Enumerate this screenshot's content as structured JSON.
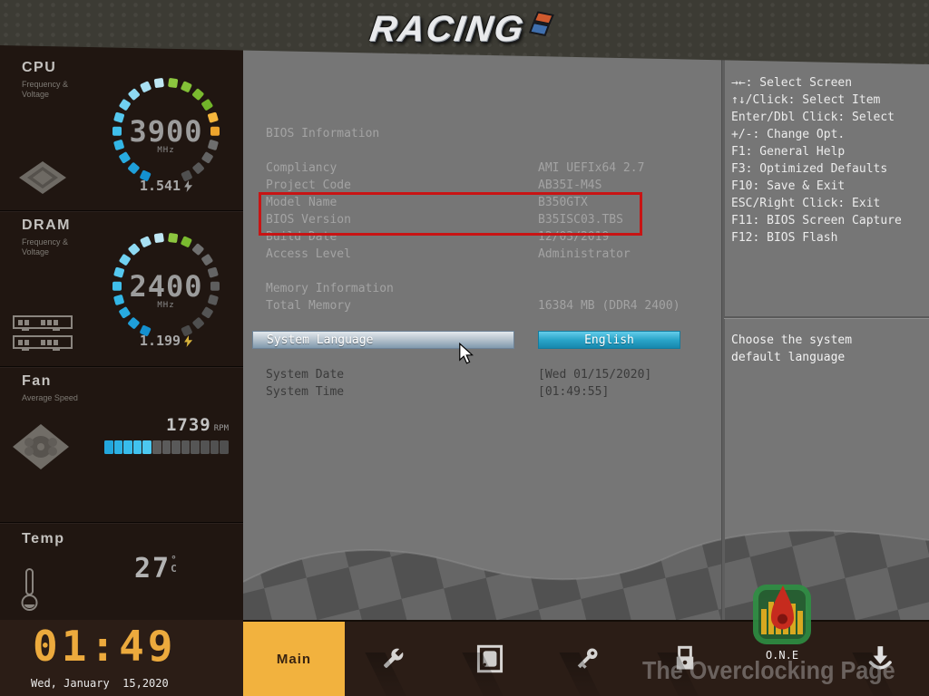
{
  "header": {
    "logo_text": "RACING"
  },
  "sidebar": {
    "cpu": {
      "title": "CPU",
      "subtitle": "Frequency & Voltage",
      "value": "3900",
      "unit": "MHz",
      "voltage": "1.541",
      "segments": [
        "#1490cf",
        "#1f9fd9",
        "#28abe0",
        "#33b6e6",
        "#40bfeb",
        "#55c8ef",
        "#70d1f1",
        "#8edaf3",
        "#a8e0f3",
        "#bfe7f4",
        "#8cc63f",
        "#83c037",
        "#7aba2f",
        "#71b52a",
        "#f5b63d",
        "#eda42c",
        "#6e6e6e",
        "#636363",
        "#585858",
        "#4f4f4f"
      ]
    },
    "dram": {
      "title": "DRAM",
      "subtitle": "Frequency & Voltage",
      "value": "2400",
      "unit": "MHz",
      "voltage": "1.199",
      "segments": [
        "#1490cf",
        "#1f9fd9",
        "#28abe0",
        "#33b6e6",
        "#40bfeb",
        "#55c8ef",
        "#70d1f1",
        "#8edaf3",
        "#a8e0f3",
        "#bfe7f4",
        "#8cc63f",
        "#7aba2f",
        "#707070",
        "#6a6a6a",
        "#646464",
        "#5e5e5e",
        "#595959",
        "#545454",
        "#4f4f4f",
        "#4a4a4a"
      ]
    },
    "fan": {
      "title": "Fan",
      "subtitle": "Average Speed",
      "value": "1739",
      "unit": "RPM",
      "segments": [
        "#23a7dd",
        "#2db2e5",
        "#38bcec",
        "#41c2ef",
        "#4cc8f1",
        "#5d5d5d",
        "#5b5b5b",
        "#595959",
        "#575757",
        "#555555",
        "#535353",
        "#515151",
        "#4f4f4f"
      ]
    },
    "temp": {
      "title": "Temp",
      "value": "27",
      "unit": "°C"
    },
    "clock": {
      "time": "01:49",
      "date": "Wed, January  15,2020"
    }
  },
  "main": {
    "bios_section_title": "BIOS Information",
    "bios_rows": [
      {
        "label": "Compliancy",
        "value": "AMI UEFIx64 2.7"
      },
      {
        "label": "Project Code",
        "value": "AB35I-M4S"
      },
      {
        "label": "Model Name",
        "value": "B350GTX",
        "highlighted": true
      },
      {
        "label": "BIOS Version",
        "value": "B35ISC03.TBS",
        "highlighted": true
      },
      {
        "label": "Build Date",
        "value": "12/03/2019"
      },
      {
        "label": "Access Level",
        "value": "Administrator"
      }
    ],
    "memory_section_title": "Memory Information",
    "memory_rows": [
      {
        "label": "Total Memory",
        "value": "16384 MB (DDR4 2400)"
      }
    ],
    "language_row": {
      "label": "System Language",
      "value": "English"
    },
    "datetime_rows": [
      {
        "label": "System Date",
        "value": "[Wed 01/15/2020]"
      },
      {
        "label": "System Time",
        "value": "[01:49:55]"
      }
    ]
  },
  "help_panel": {
    "lines": [
      "→←: Select Screen",
      "↑↓/Click: Select Item",
      "Enter/Dbl Click: Select",
      "+/-: Change Opt.",
      "F1: General Help",
      "F3: Optimized Defaults",
      "F10: Save & Exit",
      "ESC/Right Click: Exit",
      "F11: BIOS Screen Capture",
      "F12: BIOS Flash"
    ],
    "description": "Choose the system\ndefault language"
  },
  "bottom_nav": {
    "active_tab_label": "Main",
    "items": [
      {
        "icon": "wrench-icon"
      },
      {
        "icon": "chipset-icon"
      },
      {
        "icon": "key-icon"
      },
      {
        "icon": "lock-icon"
      },
      {
        "icon": "one-icon",
        "label": "O.N.E"
      },
      {
        "icon": "download-icon"
      }
    ]
  },
  "watermark": "The Overclocking Page",
  "colors": {
    "accent_amber": "#f2b23e",
    "accent_cyan": "#2fb7e9",
    "highlight_red": "#c81414",
    "select_blue": "#2aa5c9",
    "sidebar_bg": "#201611",
    "panel_gray": "#767676"
  }
}
